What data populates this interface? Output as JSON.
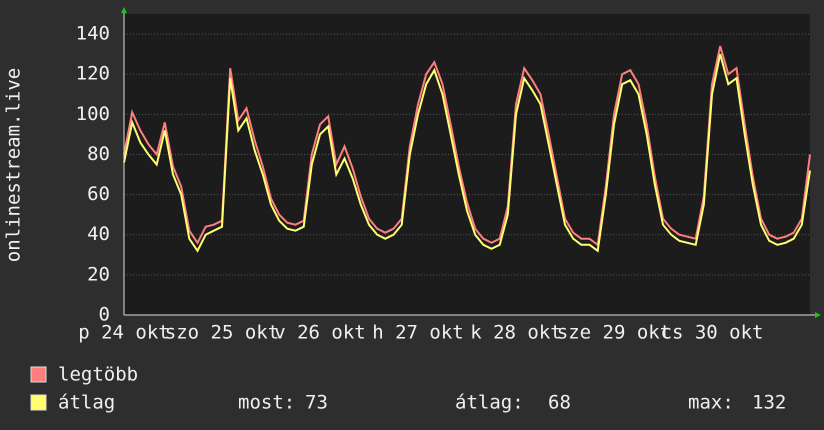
{
  "chart_data": {
    "type": "line",
    "ylabel": "onlinestream.live",
    "categories": [
      "p 24 okt",
      null,
      null,
      null,
      null,
      null,
      null,
      null,
      null,
      null,
      null,
      null,
      "szo 25 okt",
      null,
      null,
      null,
      null,
      null,
      null,
      null,
      null,
      null,
      null,
      null,
      "v 26 okt",
      null,
      null,
      null,
      null,
      null,
      null,
      null,
      null,
      null,
      null,
      null,
      "h 27 okt",
      null,
      null,
      null,
      null,
      null,
      null,
      null,
      null,
      null,
      null,
      null,
      "k 28 okt",
      null,
      null,
      null,
      null,
      null,
      null,
      null,
      null,
      null,
      null,
      null,
      "sze 29 okt",
      null,
      null,
      null,
      null,
      null,
      null,
      null,
      null,
      null,
      null,
      null,
      "cs 30 okt",
      null,
      null,
      null,
      null,
      null,
      null,
      null,
      null,
      null,
      null,
      null,
      null
    ],
    "series": [
      {
        "name": "legtöbb",
        "color": "#ff7f7f",
        "values": [
          80,
          101,
          92,
          85,
          80,
          96,
          74,
          64,
          42,
          36,
          44,
          45,
          47,
          123,
          97,
          103,
          87,
          74,
          58,
          50,
          46,
          45,
          47,
          80,
          95,
          99,
          75,
          84,
          73,
          59,
          48,
          43,
          41,
          43,
          48,
          84,
          105,
          120,
          126,
          115,
          95,
          74,
          56,
          43,
          38,
          36,
          38,
          54,
          105,
          123,
          117,
          110,
          90,
          69,
          48,
          41,
          38,
          38,
          35,
          64,
          100,
          120,
          122,
          115,
          95,
          69,
          48,
          43,
          40,
          39,
          38,
          59,
          115,
          134,
          120,
          123,
          95,
          69,
          48,
          40,
          38,
          39,
          41,
          48,
          80
        ]
      },
      {
        "name": "átlag",
        "color": "#ffff70",
        "values": [
          76,
          96,
          86,
          80,
          75,
          92,
          70,
          60,
          38,
          32,
          40,
          42,
          44,
          118,
          92,
          98,
          82,
          70,
          55,
          47,
          43,
          42,
          44,
          75,
          90,
          94,
          70,
          78,
          68,
          55,
          45,
          40,
          38,
          40,
          45,
          80,
          100,
          115,
          122,
          110,
          90,
          70,
          52,
          40,
          35,
          33,
          35,
          50,
          100,
          118,
          112,
          105,
          85,
          65,
          45,
          38,
          35,
          35,
          32,
          60,
          95,
          115,
          117,
          110,
          90,
          65,
          45,
          40,
          37,
          36,
          35,
          55,
          110,
          130,
          115,
          118,
          90,
          65,
          45,
          37,
          35,
          36,
          38,
          45,
          72
        ]
      }
    ],
    "stats": [
      {
        "label": "most:",
        "value": 73
      },
      {
        "label": "átlag:",
        "value": 68
      },
      {
        "label": "max:",
        "value": 132
      }
    ],
    "ylim": [
      0,
      150
    ],
    "yticks": [
      0,
      20,
      40,
      60,
      80,
      100,
      120,
      140
    ],
    "grid": true
  }
}
